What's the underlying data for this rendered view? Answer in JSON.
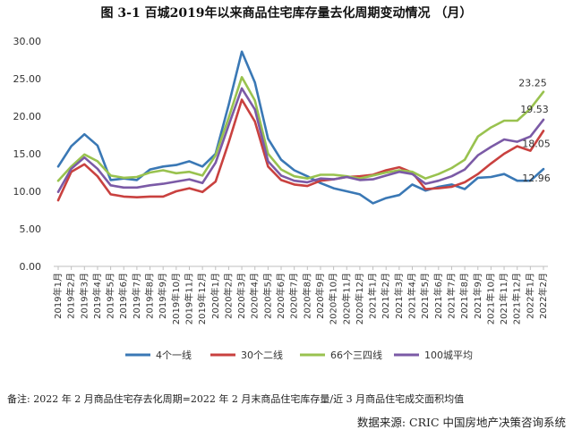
{
  "title": "图 3-1  百城2019年以来商品住宅库存量去化周期变动情况 （月）",
  "note": "备注:  2022 年 2 月商品住宅存去化周期=2022 年 2 月末商品住宅库存量/近 3 月商品住宅成交面积均值",
  "source": "数据来源:  CRIC 中国房地产决策咨询系统",
  "chart_data": {
    "type": "line",
    "title": "图 3-1  百城2019年以来商品住宅库存量去化周期变动情况 （月）",
    "xlabel": "",
    "ylabel": "",
    "ylim": [
      0,
      30
    ],
    "yticks": [
      "0.00",
      "5.00",
      "10.00",
      "15.00",
      "20.00",
      "25.00",
      "30.00"
    ],
    "grid": false,
    "legend_position": "bottom",
    "categories": [
      "2019年1月",
      "2019年2月",
      "2019年3月",
      "2019年4月",
      "2019年5月",
      "2019年6月",
      "2019年7月",
      "2019年8月",
      "2019年9月",
      "2019年10月",
      "2019年11月",
      "2019年12月",
      "2020年1月",
      "2020年2月",
      "2020年3月",
      "2020年4月",
      "2020年5月",
      "2020年6月",
      "2020年7月",
      "2020年8月",
      "2020年9月",
      "2020年10月",
      "2020年11月",
      "2020年12月",
      "2021年1月",
      "2021年2月",
      "2021年3月",
      "2021年4月",
      "2021年5月",
      "2021年6月",
      "2021年7月",
      "2021年8月",
      "2021年9月",
      "2021年10月",
      "2021年11月",
      "2021年12月",
      "2022年1月",
      "2022年2月"
    ],
    "series": [
      {
        "name": "4个一线",
        "color": "#3a78b5",
        "values": [
          13.3,
          16.0,
          17.6,
          16.1,
          11.5,
          11.7,
          11.5,
          12.9,
          13.3,
          13.5,
          14.0,
          13.3,
          15.0,
          21.5,
          28.6,
          24.5,
          17.0,
          14.2,
          12.8,
          12.0,
          11.1,
          10.4,
          10.0,
          9.6,
          8.4,
          9.1,
          9.5,
          10.9,
          10.1,
          10.6,
          10.9,
          10.3,
          11.8,
          11.9,
          12.3,
          11.4,
          11.4,
          12.96
        ],
        "end_label": "12.96"
      },
      {
        "name": "30个二线",
        "color": "#c9413f",
        "values": [
          8.8,
          12.6,
          13.6,
          12.0,
          9.6,
          9.3,
          9.2,
          9.3,
          9.3,
          10.0,
          10.4,
          9.9,
          11.3,
          16.5,
          22.2,
          19.3,
          13.3,
          11.5,
          10.9,
          10.7,
          11.4,
          11.6,
          11.9,
          12.0,
          12.2,
          12.8,
          13.2,
          12.5,
          10.3,
          10.4,
          10.6,
          11.2,
          12.3,
          13.7,
          15.0,
          16.0,
          15.4,
          18.05
        ],
        "end_label": "18.05"
      },
      {
        "name": "66个三四线",
        "color": "#99c24f",
        "values": [
          11.4,
          13.3,
          14.9,
          14.0,
          12.1,
          11.8,
          11.9,
          12.5,
          12.8,
          12.4,
          12.6,
          12.1,
          14.8,
          19.8,
          25.2,
          22.1,
          15.0,
          12.9,
          12.0,
          11.7,
          12.2,
          12.2,
          12.0,
          11.7,
          12.1,
          12.5,
          12.8,
          12.6,
          11.7,
          12.3,
          13.1,
          14.2,
          17.3,
          18.5,
          19.4,
          19.4,
          21.0,
          23.25
        ],
        "end_label": "23.25"
      },
      {
        "name": "100城平均",
        "color": "#7b5aa6",
        "values": [
          9.9,
          13.0,
          14.5,
          13.0,
          10.8,
          10.5,
          10.5,
          10.8,
          11.0,
          11.3,
          11.6,
          11.1,
          13.8,
          18.8,
          23.7,
          20.9,
          14.0,
          12.1,
          11.4,
          11.2,
          11.7,
          11.6,
          11.9,
          11.5,
          11.6,
          12.1,
          12.6,
          12.3,
          11.0,
          11.4,
          12.0,
          12.9,
          14.8,
          15.9,
          16.9,
          16.6,
          17.3,
          19.53
        ],
        "end_label": "19.53"
      }
    ]
  }
}
